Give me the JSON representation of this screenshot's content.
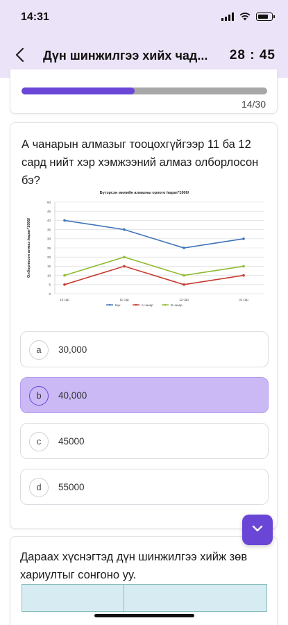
{
  "status_bar": {
    "time": "14:31"
  },
  "header": {
    "title": "Дүн шинжилгээ хийх чад...",
    "timer": "28 : 45"
  },
  "progress": {
    "fraction": 0.46,
    "counter": "14/30"
  },
  "question": {
    "text": "А чанарын алмазыг тооцохгүйгээр 11 ба 12 сард нийт хэр хэмжээний алмаз олборлосон бэ?",
    "options": [
      {
        "letter": "a",
        "value": "30,000",
        "selected": false
      },
      {
        "letter": "b",
        "value": "40,000",
        "selected": true
      },
      {
        "letter": "c",
        "value": "45000",
        "selected": false
      },
      {
        "letter": "d",
        "value": "55000",
        "selected": false
      }
    ]
  },
  "chart_data": {
    "type": "line",
    "title": "Бүтэрсэн милийн алмазны орлого /карат*1000/",
    "ylabel": "Олборлосон алмаз /карат*1000/",
    "xlabel": "",
    "categories": [
      "10 сар",
      "11 сар",
      "12 сар",
      "01 сар"
    ],
    "ylim": [
      0,
      50
    ],
    "yticks": [
      0,
      5,
      10,
      15,
      20,
      25,
      30,
      35,
      40,
      45,
      50
    ],
    "grid": true,
    "legend_position": "bottom",
    "series": [
      {
        "name": "Бүх",
        "color": "#3d73b8",
        "values": [
          40,
          35,
          25,
          30
        ]
      },
      {
        "name": "А чанар",
        "color": "#c63a2f",
        "values": [
          5,
          15,
          5,
          10
        ]
      },
      {
        "name": "В чанар",
        "color": "#8dba2f",
        "values": [
          10,
          20,
          10,
          15
        ]
      }
    ]
  },
  "next_question": {
    "text": "Дараах хүснэгтэд дүн шинжилгээ хийж зөв хариултыг сонгоно уу."
  },
  "icons": {
    "back": "chevron-left-icon",
    "fab": "chevron-down-icon"
  },
  "colors": {
    "accent": "#6a46d6",
    "selected_option": "#cbb9f6",
    "header_bg": "#ebe3f7"
  }
}
